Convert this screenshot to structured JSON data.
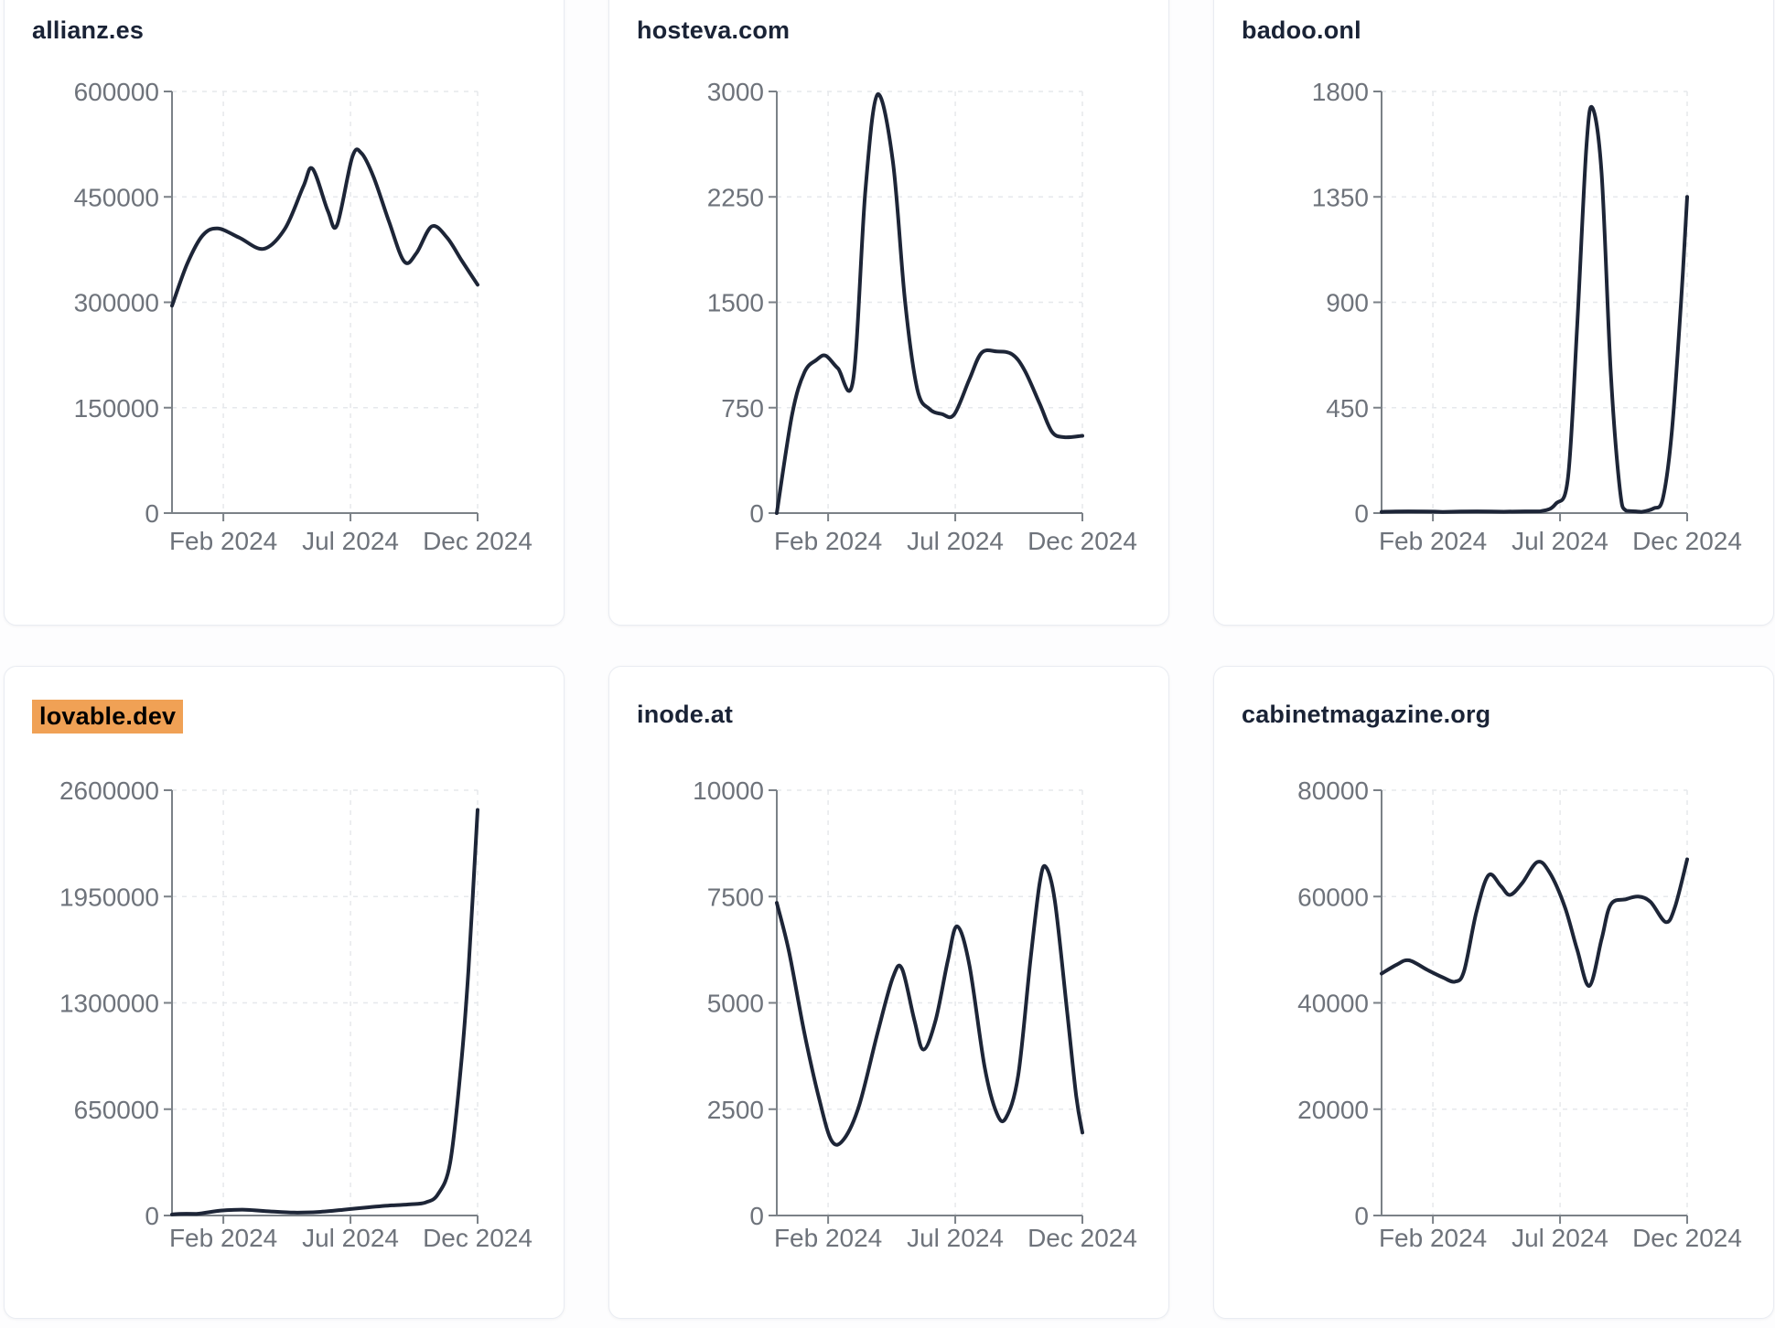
{
  "page": {
    "description_colors": {
      "accent_line": "#1d2537",
      "title": "#1a2336",
      "axis": "#7b8187",
      "tick_label": "#6e737b",
      "grid": "#e6e8ec",
      "card_border": "#e9ecf2",
      "card_bg": "#ffffff",
      "page_bg": "#fdfdfe",
      "highlight_bg": "#f0a155",
      "highlight_text": "#000000"
    }
  },
  "chart_data": [
    {
      "type": "line",
      "title": "allianz.es",
      "highlighted": false,
      "x_tick_labels": [
        "Feb 2024",
        "Jul 2024",
        "Dec 2024"
      ],
      "y_ticks": [
        0,
        150000,
        300000,
        450000,
        600000
      ],
      "ylim": [
        0,
        600000
      ],
      "x_unit": "fraction of x-axis (early Jan 2024 to Dec 2024)",
      "grid": true,
      "legend": "none",
      "points": [
        [
          0,
          295000
        ],
        [
          0.05,
          355000
        ],
        [
          0.1,
          395000
        ],
        [
          0.15,
          405000
        ],
        [
          0.22,
          392000
        ],
        [
          0.3,
          376000
        ],
        [
          0.37,
          405000
        ],
        [
          0.43,
          465000
        ],
        [
          0.46,
          490000
        ],
        [
          0.51,
          430000
        ],
        [
          0.54,
          410000
        ],
        [
          0.59,
          507000
        ],
        [
          0.62,
          512000
        ],
        [
          0.66,
          478000
        ],
        [
          0.71,
          415000
        ],
        [
          0.76,
          358000
        ],
        [
          0.8,
          370000
        ],
        [
          0.85,
          408000
        ],
        [
          0.9,
          392000
        ],
        [
          0.95,
          358000
        ],
        [
          1,
          325000
        ]
      ]
    },
    {
      "type": "line",
      "title": "hosteva.com",
      "highlighted": false,
      "x_tick_labels": [
        "Feb 2024",
        "Jul 2024",
        "Dec 2024"
      ],
      "y_ticks": [
        0,
        750,
        1500,
        2250,
        3000
      ],
      "ylim": [
        0,
        3000
      ],
      "x_unit": "fraction of x-axis (early Jan 2024 to Dec 2024)",
      "grid": true,
      "legend": "none",
      "points": [
        [
          0,
          0
        ],
        [
          0.05,
          700
        ],
        [
          0.09,
          1000
        ],
        [
          0.13,
          1090
        ],
        [
          0.16,
          1120
        ],
        [
          0.2,
          1030
        ],
        [
          0.25,
          950
        ],
        [
          0.29,
          2300
        ],
        [
          0.33,
          2980
        ],
        [
          0.38,
          2500
        ],
        [
          0.42,
          1500
        ],
        [
          0.46,
          880
        ],
        [
          0.5,
          740
        ],
        [
          0.54,
          705
        ],
        [
          0.58,
          700
        ],
        [
          0.63,
          950
        ],
        [
          0.67,
          1140
        ],
        [
          0.72,
          1150
        ],
        [
          0.77,
          1130
        ],
        [
          0.81,
          1020
        ],
        [
          0.86,
          780
        ],
        [
          0.9,
          580
        ],
        [
          0.94,
          540
        ],
        [
          1,
          550
        ]
      ]
    },
    {
      "type": "line",
      "title": "badoo.onl",
      "highlighted": false,
      "x_tick_labels": [
        "Feb 2024",
        "Jul 2024",
        "Dec 2024"
      ],
      "y_ticks": [
        0,
        450,
        900,
        1350,
        1800
      ],
      "ylim": [
        0,
        1800
      ],
      "x_unit": "fraction of x-axis (early Jan 2024 to Dec 2024)",
      "grid": true,
      "legend": "none",
      "points": [
        [
          0,
          5
        ],
        [
          0.2,
          5
        ],
        [
          0.4,
          6
        ],
        [
          0.52,
          8
        ],
        [
          0.57,
          40
        ],
        [
          0.61,
          150
        ],
        [
          0.64,
          800
        ],
        [
          0.67,
          1560
        ],
        [
          0.69,
          1730
        ],
        [
          0.72,
          1450
        ],
        [
          0.75,
          600
        ],
        [
          0.78,
          100
        ],
        [
          0.8,
          10
        ],
        [
          0.85,
          5
        ],
        [
          0.89,
          20
        ],
        [
          0.92,
          60
        ],
        [
          0.95,
          350
        ],
        [
          0.98,
          900
        ],
        [
          1,
          1350
        ]
      ]
    },
    {
      "type": "line",
      "title": "lovable.dev",
      "highlighted": true,
      "x_tick_labels": [
        "Feb 2024",
        "Jul 2024",
        "Dec 2024"
      ],
      "y_ticks": [
        0,
        650000,
        1300000,
        1950000,
        2600000
      ],
      "ylim": [
        0,
        2600000
      ],
      "x_unit": "fraction of x-axis (early Jan 2024 to Dec 2024)",
      "grid": true,
      "legend": "none",
      "points": [
        [
          0,
          6000
        ],
        [
          0.08,
          10000
        ],
        [
          0.16,
          30000
        ],
        [
          0.24,
          35000
        ],
        [
          0.32,
          25000
        ],
        [
          0.4,
          18000
        ],
        [
          0.48,
          22000
        ],
        [
          0.56,
          35000
        ],
        [
          0.64,
          50000
        ],
        [
          0.72,
          62000
        ],
        [
          0.78,
          68000
        ],
        [
          0.83,
          80000
        ],
        [
          0.87,
          130000
        ],
        [
          0.91,
          320000
        ],
        [
          0.945,
          900000
        ],
        [
          0.97,
          1500000
        ],
        [
          1,
          2480000
        ]
      ]
    },
    {
      "type": "line",
      "title": "inode.at",
      "highlighted": false,
      "x_tick_labels": [
        "Feb 2024",
        "Jul 2024",
        "Dec 2024"
      ],
      "y_ticks": [
        0,
        2500,
        5000,
        7500,
        10000
      ],
      "ylim": [
        0,
        10000
      ],
      "x_unit": "fraction of x-axis (early Jan 2024 to Dec 2024)",
      "grid": true,
      "legend": "none",
      "points": [
        [
          0,
          7350
        ],
        [
          0.04,
          6200
        ],
        [
          0.09,
          4300
        ],
        [
          0.14,
          2700
        ],
        [
          0.18,
          1750
        ],
        [
          0.22,
          1800
        ],
        [
          0.27,
          2600
        ],
        [
          0.33,
          4300
        ],
        [
          0.38,
          5600
        ],
        [
          0.41,
          5800
        ],
        [
          0.45,
          4600
        ],
        [
          0.48,
          3900
        ],
        [
          0.52,
          4600
        ],
        [
          0.56,
          6000
        ],
        [
          0.59,
          6800
        ],
        [
          0.63,
          5900
        ],
        [
          0.68,
          3500
        ],
        [
          0.72,
          2400
        ],
        [
          0.75,
          2300
        ],
        [
          0.79,
          3300
        ],
        [
          0.83,
          6000
        ],
        [
          0.86,
          7800
        ],
        [
          0.88,
          8200
        ],
        [
          0.91,
          7400
        ],
        [
          0.95,
          4800
        ],
        [
          0.98,
          2800
        ],
        [
          1,
          1950
        ]
      ]
    },
    {
      "type": "line",
      "title": "cabinetmagazine.org",
      "highlighted": false,
      "x_tick_labels": [
        "Feb 2024",
        "Jul 2024",
        "Dec 2024"
      ],
      "y_ticks": [
        0,
        20000,
        40000,
        60000,
        80000
      ],
      "ylim": [
        0,
        80000
      ],
      "x_unit": "fraction of x-axis (early Jan 2024 to Dec 2024)",
      "grid": true,
      "legend": "none",
      "points": [
        [
          0,
          45500
        ],
        [
          0.05,
          47200
        ],
        [
          0.09,
          48000
        ],
        [
          0.15,
          46200
        ],
        [
          0.2,
          44800
        ],
        [
          0.24,
          44000
        ],
        [
          0.27,
          46000
        ],
        [
          0.31,
          57000
        ],
        [
          0.35,
          64000
        ],
        [
          0.39,
          62000
        ],
        [
          0.42,
          60300
        ],
        [
          0.46,
          62500
        ],
        [
          0.51,
          66500
        ],
        [
          0.55,
          64500
        ],
        [
          0.6,
          58000
        ],
        [
          0.64,
          50000
        ],
        [
          0.68,
          43200
        ],
        [
          0.72,
          52000
        ],
        [
          0.75,
          58500
        ],
        [
          0.8,
          59500
        ],
        [
          0.84,
          60000
        ],
        [
          0.88,
          59000
        ],
        [
          0.93,
          55200
        ],
        [
          0.96,
          58000
        ],
        [
          1,
          67000
        ]
      ]
    }
  ]
}
